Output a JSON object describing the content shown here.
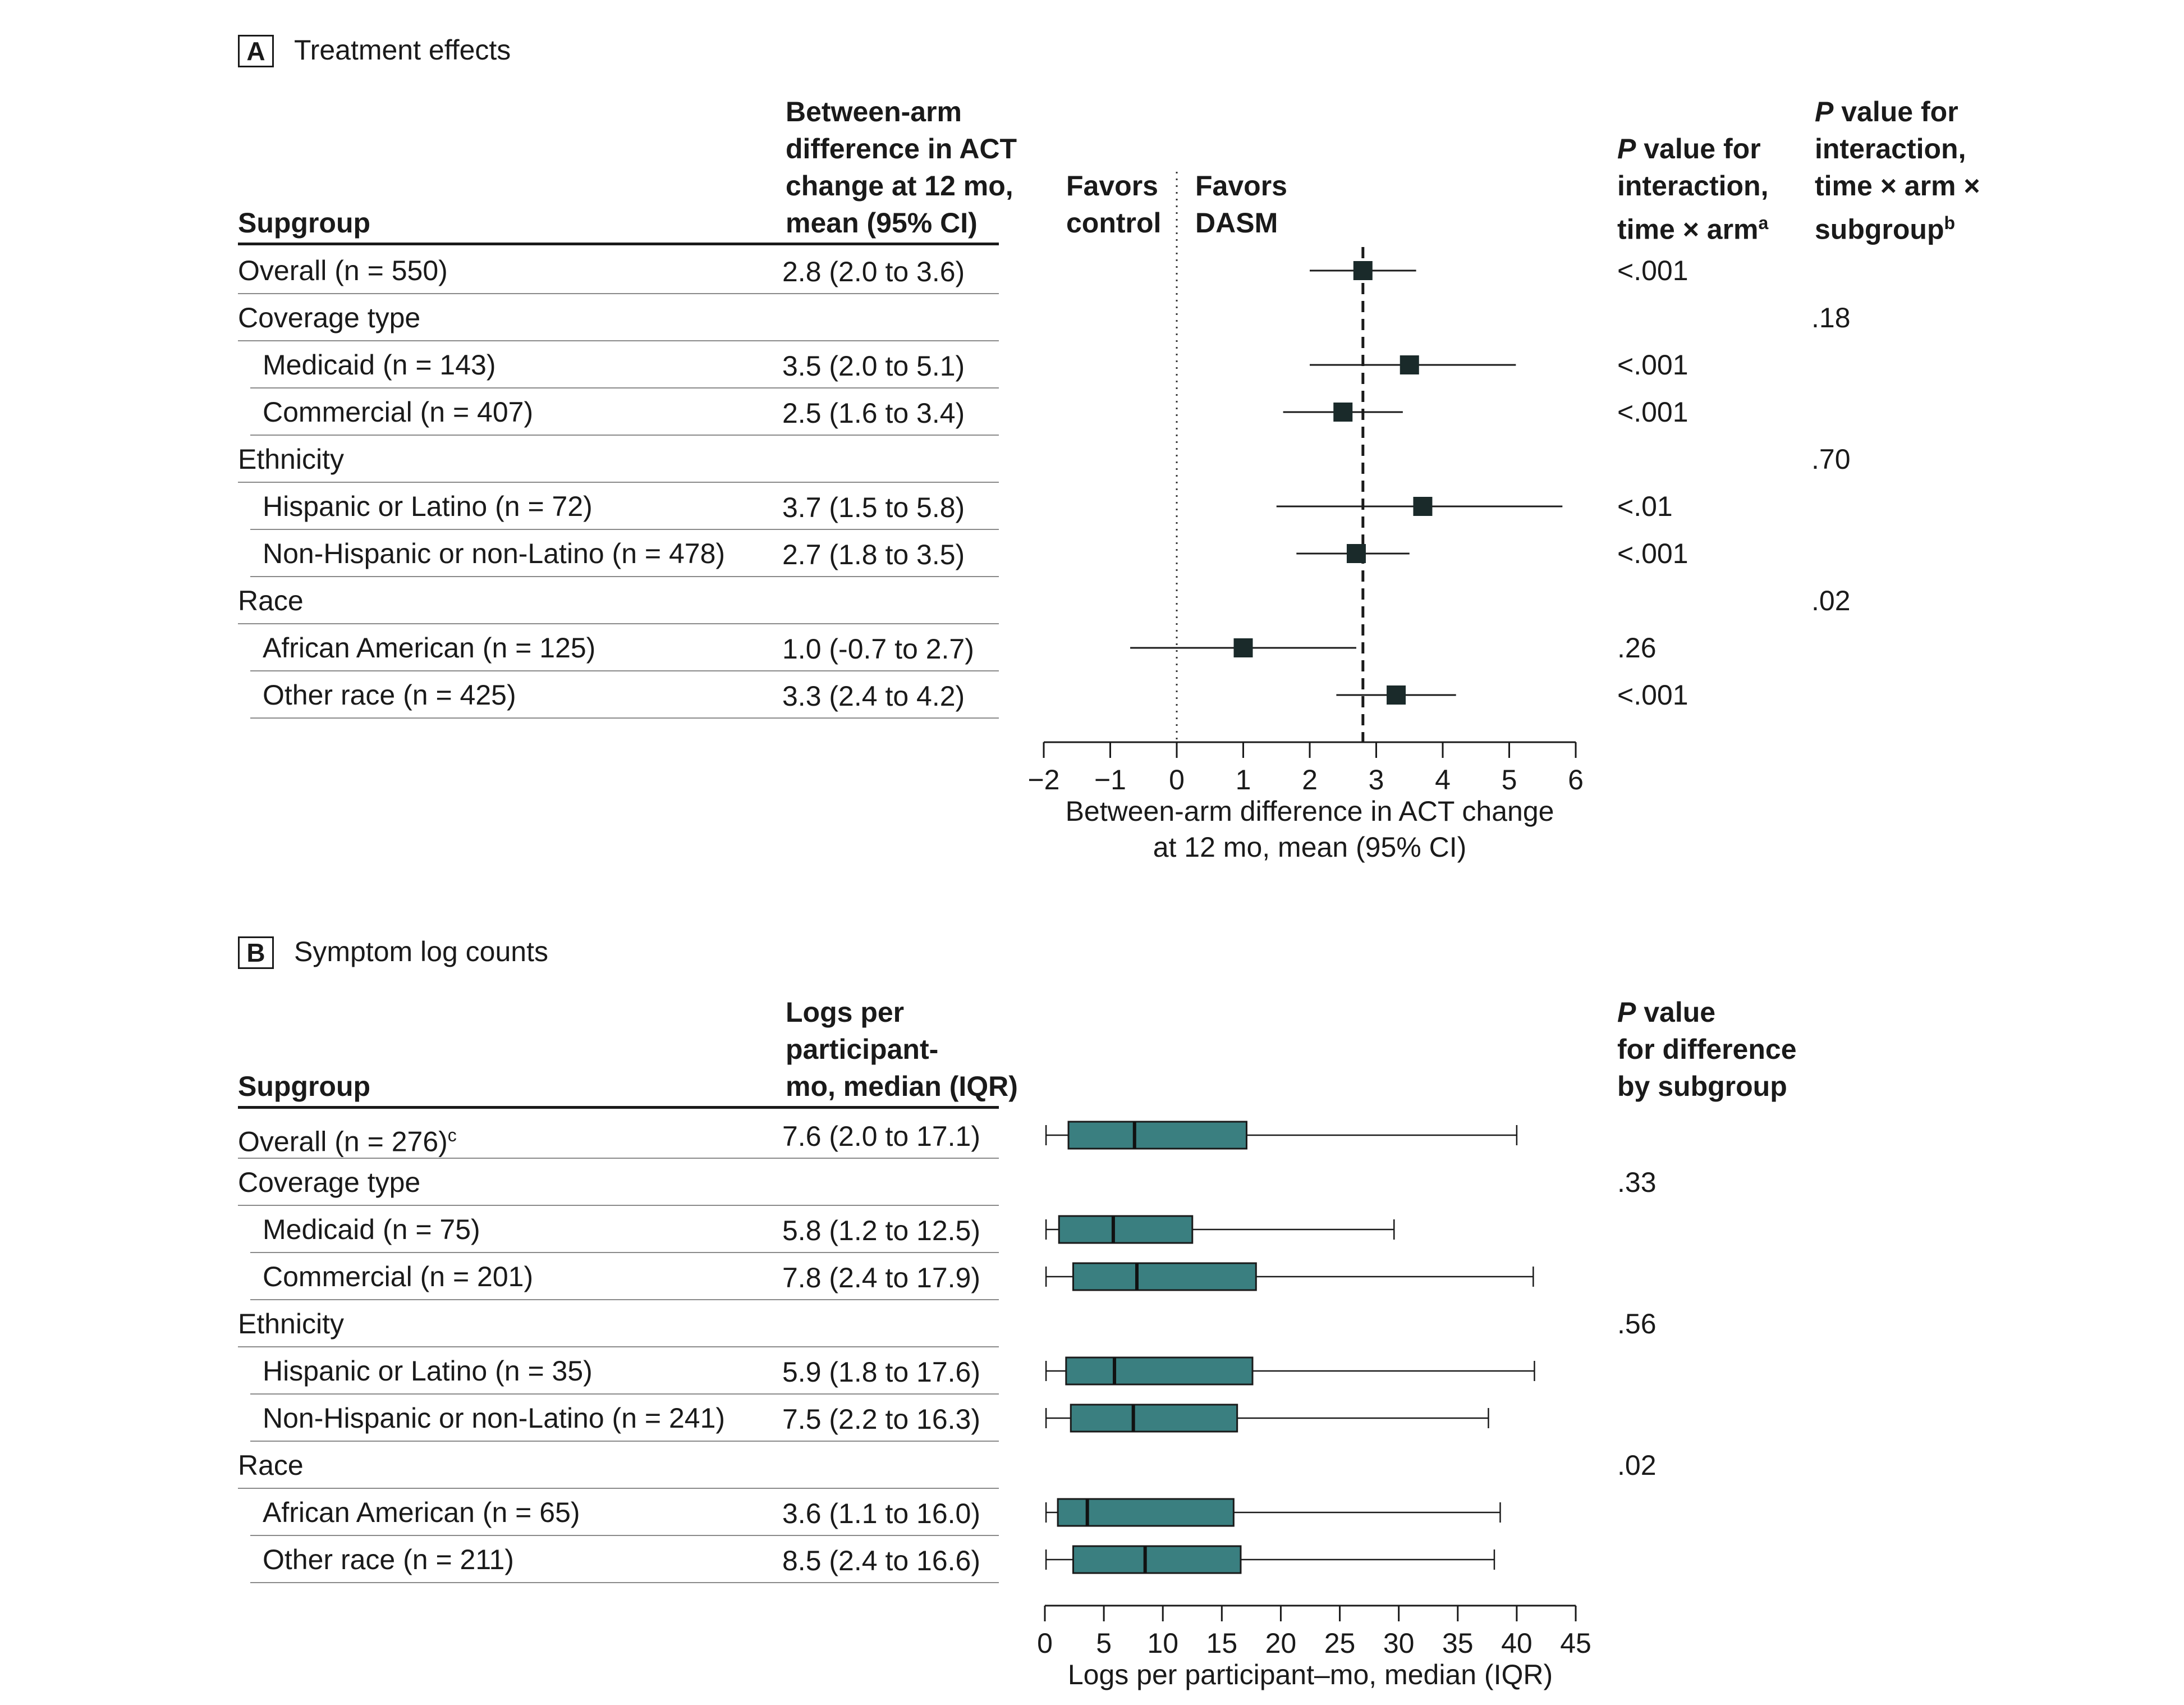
{
  "panel_a": {
    "letter": "A",
    "title": "Treatment effects",
    "header_subgroup": "Supgroup",
    "header_estimate": [
      "Between-arm",
      "difference in ACT",
      "change at 12 mo,",
      "mean (95% CI)"
    ],
    "favors_control": [
      "Favors",
      "control"
    ],
    "favors_dasm": [
      "Favors",
      "DASM"
    ],
    "header_p1": {
      "p": "P",
      "line1": " value for",
      "line2": "interaction,",
      "line3": "time × arm",
      "sup": "a"
    },
    "header_p2": {
      "p": "P",
      "line1": " value for",
      "line2": "interaction,",
      "line3": "time × arm ×",
      "line4": "subgroup",
      "sup": "b"
    },
    "rows": [
      {
        "label": "Overall (n = 550)",
        "indent": false,
        "estimate": "2.8 (2.0 to 3.6)",
        "p_time_arm": "<.001",
        "p_subgroup": ""
      },
      {
        "label": "Coverage type",
        "indent": false,
        "estimate": "",
        "p_time_arm": "",
        "p_subgroup": ".18"
      },
      {
        "label": "Medicaid (n = 143)",
        "indent": true,
        "estimate": "3.5 (2.0 to 5.1)",
        "p_time_arm": "<.001",
        "p_subgroup": ""
      },
      {
        "label": "Commercial (n = 407)",
        "indent": true,
        "estimate": "2.5 (1.6 to 3.4)",
        "p_time_arm": "<.001",
        "p_subgroup": ""
      },
      {
        "label": "Ethnicity",
        "indent": false,
        "estimate": "",
        "p_time_arm": "",
        "p_subgroup": ".70"
      },
      {
        "label": "Hispanic or Latino (n = 72)",
        "indent": true,
        "estimate": "3.7 (1.5 to 5.8)",
        "p_time_arm": "<.01",
        "p_subgroup": ""
      },
      {
        "label": "Non-Hispanic or non-Latino (n = 478)",
        "indent": true,
        "estimate": "2.7 (1.8 to 3.5)",
        "p_time_arm": "<.001",
        "p_subgroup": ""
      },
      {
        "label": "Race",
        "indent": false,
        "estimate": "",
        "p_time_arm": "",
        "p_subgroup": ".02"
      },
      {
        "label": "African American (n = 125)",
        "indent": true,
        "estimate": "1.0 (-0.7 to 2.7)",
        "p_time_arm": ".26",
        "p_subgroup": ""
      },
      {
        "label": "Other race (n = 425)",
        "indent": true,
        "estimate": "3.3 (2.4 to 4.2)",
        "p_time_arm": "<.001",
        "p_subgroup": ""
      }
    ],
    "xlabel_lines": [
      "Between-arm difference in ACT change",
      "at 12 mo, mean (95% CI)"
    ]
  },
  "panel_b": {
    "letter": "B",
    "title": "Symptom log counts",
    "header_subgroup": "Supgroup",
    "header_estimate": [
      "Logs per",
      "participant-",
      "mo, median (IQR)"
    ],
    "header_p": {
      "p": "P",
      "line1": " value",
      "line2": "for difference",
      "line3": "by subgroup"
    },
    "rows": [
      {
        "label": "Overall (n = 276)",
        "sup": "c",
        "indent": false,
        "estimate": "7.6 (2.0 to 17.1)",
        "p": ""
      },
      {
        "label": "Coverage type",
        "sup": "",
        "indent": false,
        "estimate": "",
        "p": ".33"
      },
      {
        "label": "Medicaid (n = 75)",
        "sup": "",
        "indent": true,
        "estimate": "5.8 (1.2 to 12.5)",
        "p": ""
      },
      {
        "label": "Commercial (n = 201)",
        "sup": "",
        "indent": true,
        "estimate": "7.8 (2.4 to 17.9)",
        "p": ""
      },
      {
        "label": "Ethnicity",
        "sup": "",
        "indent": false,
        "estimate": "",
        "p": ".56"
      },
      {
        "label": "Hispanic or Latino (n = 35)",
        "sup": "",
        "indent": true,
        "estimate": "5.9 (1.8 to 17.6)",
        "p": ""
      },
      {
        "label": "Non-Hispanic or non-Latino (n = 241)",
        "sup": "",
        "indent": true,
        "estimate": "7.5 (2.2 to 16.3)",
        "p": ""
      },
      {
        "label": "Race",
        "sup": "",
        "indent": false,
        "estimate": "",
        "p": ".02"
      },
      {
        "label": "African American (n = 65)",
        "sup": "",
        "indent": true,
        "estimate": "3.6 (1.1 to 16.0)",
        "p": ""
      },
      {
        "label": "Other race (n = 211)",
        "sup": "",
        "indent": true,
        "estimate": "8.5 (2.4 to 16.6)",
        "p": ""
      }
    ],
    "xlabel_lines": [
      "Logs per participant–mo, median (IQR)"
    ]
  },
  "chart_data": [
    {
      "type": "forest",
      "title": "Treatment effects",
      "xlabel": "Between-arm difference in ACT change at 12 mo, mean (95% CI)",
      "xlim": [
        -2,
        6
      ],
      "ticks": [
        -2,
        -1,
        0,
        1,
        2,
        3,
        4,
        5,
        6
      ],
      "tick_labels": [
        "−2",
        "−1",
        "0",
        "1",
        "2",
        "3",
        "4",
        "5",
        "6"
      ],
      "null_line": 0,
      "overall_line": 2.8,
      "marker_color": "#1a2a2a",
      "points": [
        {
          "row": 0,
          "label": "Overall",
          "estimate": 2.8,
          "lower": 2.0,
          "upper": 3.6
        },
        {
          "row": 2,
          "label": "Medicaid",
          "estimate": 3.5,
          "lower": 2.0,
          "upper": 5.1
        },
        {
          "row": 3,
          "label": "Commercial",
          "estimate": 2.5,
          "lower": 1.6,
          "upper": 3.4
        },
        {
          "row": 5,
          "label": "Hispanic or Latino",
          "estimate": 3.7,
          "lower": 1.5,
          "upper": 5.8
        },
        {
          "row": 6,
          "label": "Non-Hispanic or non-Latino",
          "estimate": 2.7,
          "lower": 1.8,
          "upper": 3.5
        },
        {
          "row": 8,
          "label": "African American",
          "estimate": 1.0,
          "lower": -0.7,
          "upper": 2.7
        },
        {
          "row": 9,
          "label": "Other race",
          "estimate": 3.3,
          "lower": 2.4,
          "upper": 4.2
        }
      ]
    },
    {
      "type": "boxplot",
      "title": "Symptom log counts",
      "xlabel": "Logs per participant–mo, median (IQR)",
      "xlim": [
        0,
        45
      ],
      "ticks": [
        0,
        5,
        10,
        15,
        20,
        25,
        30,
        35,
        40,
        45
      ],
      "tick_labels": [
        "0",
        "5",
        "10",
        "15",
        "20",
        "25",
        "30",
        "35",
        "40",
        "45"
      ],
      "box_color": "#3a7f80",
      "boxes": [
        {
          "row": 0,
          "label": "Overall",
          "min": 0.1,
          "q1": 2.0,
          "median": 7.6,
          "q3": 17.1,
          "max": 40.0
        },
        {
          "row": 2,
          "label": "Medicaid",
          "min": 0.1,
          "q1": 1.2,
          "median": 5.8,
          "q3": 12.5,
          "max": 29.6
        },
        {
          "row": 3,
          "label": "Commercial",
          "min": 0.1,
          "q1": 2.4,
          "median": 7.8,
          "q3": 17.9,
          "max": 41.4
        },
        {
          "row": 5,
          "label": "Hispanic or Latino",
          "min": 0.1,
          "q1": 1.8,
          "median": 5.9,
          "q3": 17.6,
          "max": 41.5
        },
        {
          "row": 6,
          "label": "Non-Hispanic or non-Latino",
          "min": 0.1,
          "q1": 2.2,
          "median": 7.5,
          "q3": 16.3,
          "max": 37.6
        },
        {
          "row": 8,
          "label": "African American",
          "min": 0.1,
          "q1": 1.1,
          "median": 3.6,
          "q3": 16.0,
          "max": 38.6
        },
        {
          "row": 9,
          "label": "Other race",
          "min": 0.1,
          "q1": 2.4,
          "median": 8.5,
          "q3": 16.6,
          "max": 38.1
        }
      ]
    }
  ]
}
